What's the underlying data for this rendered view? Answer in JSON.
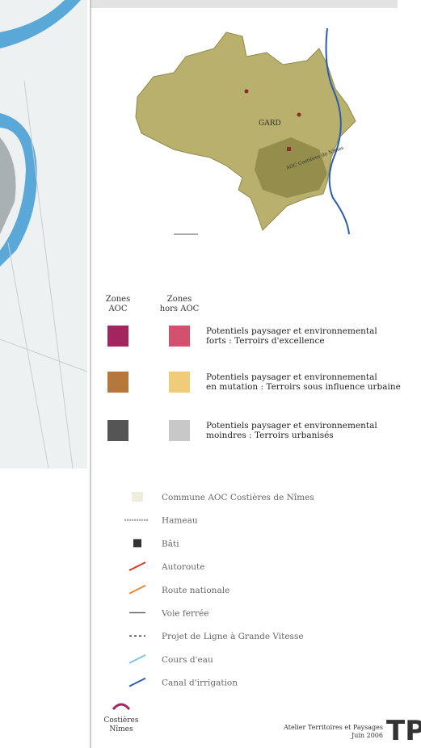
{
  "map": {
    "region_label": "GARD",
    "aoc_label": "AOC Costières de Nîmes"
  },
  "zones": {
    "header_aoc": [
      "Zones",
      "AOC"
    ],
    "header_hors_aoc": [
      "Zones",
      "hors AOC"
    ],
    "rows": [
      {
        "label": [
          "Potentiels paysager et environnemental",
          "forts : Terroirs d'excellence"
        ]
      },
      {
        "label": [
          "Potentiels paysager et environnemental",
          "en mutation : Terroirs sous influence urbaine"
        ]
      },
      {
        "label": [
          "Potentiels paysager et environnemental",
          "moindres : Terroirs urbanisés"
        ]
      }
    ]
  },
  "legend": [
    "Commune AOC Costières de Nîmes",
    "Hameau",
    "Bâti",
    "Autoroute",
    "Route nationale",
    "Voie ferrée",
    "Projet de Ligne à Grande Vitesse",
    "Cours d'eau",
    "Canal d'irrigation"
  ],
  "footer": {
    "logo": [
      "Costières",
      "Nîmes"
    ],
    "credit": "Atelier Territoires et Paysages",
    "date": "Juin 2006",
    "mark": "TP"
  }
}
